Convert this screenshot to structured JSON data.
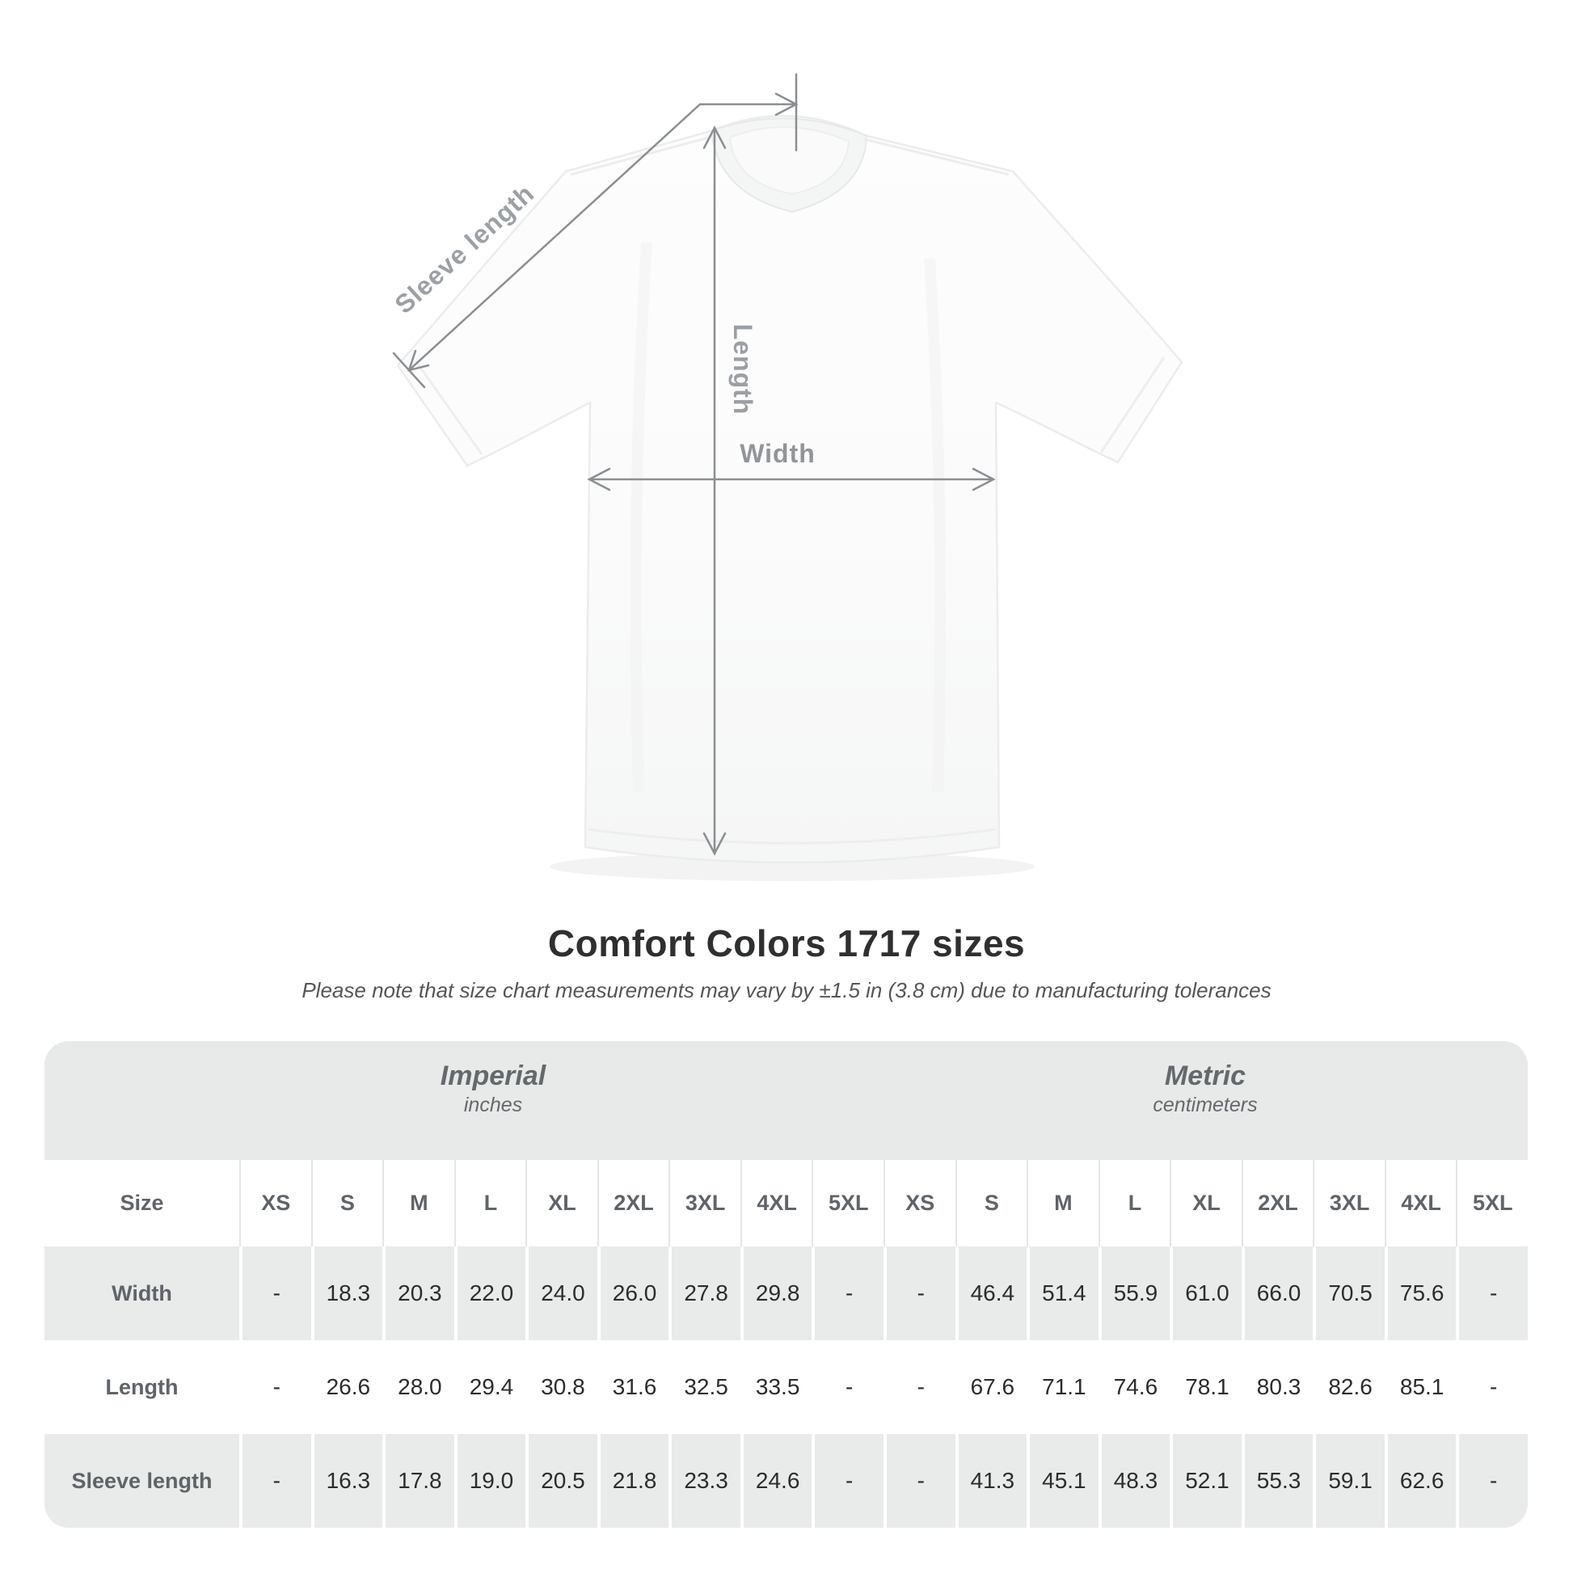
{
  "title": "Comfort Colors 1717 sizes",
  "subtitle": "Please note that size chart measurements may vary by ±1.5 in (3.8 cm) due to manufacturing tolerances",
  "diagram": {
    "labels": {
      "sleeve": "Sleeve length",
      "length": "Length",
      "width": "Width"
    },
    "line_color": "#8a8f92",
    "label_color": "#9aa0a4",
    "shirt_color": "#fbfbfb"
  },
  "table": {
    "size_label": "Size",
    "unit_groups": [
      {
        "name": "Imperial",
        "unit": "inches"
      },
      {
        "name": "Metric",
        "unit": "centimeters"
      }
    ],
    "sizes": [
      "XS",
      "S",
      "M",
      "L",
      "XL",
      "2XL",
      "3XL",
      "4XL",
      "5XL"
    ],
    "rows": [
      {
        "label": "Width",
        "imperial": [
          "-",
          "18.3",
          "20.3",
          "22.0",
          "24.0",
          "26.0",
          "27.8",
          "29.8",
          "-"
        ],
        "metric": [
          "-",
          "46.4",
          "51.4",
          "55.9",
          "61.0",
          "66.0",
          "70.5",
          "75.6",
          "-"
        ]
      },
      {
        "label": "Length",
        "imperial": [
          "-",
          "26.6",
          "28.0",
          "29.4",
          "30.8",
          "31.6",
          "32.5",
          "33.5",
          "-"
        ],
        "metric": [
          "-",
          "67.6",
          "71.1",
          "74.6",
          "78.1",
          "80.3",
          "82.6",
          "85.1",
          "-"
        ]
      },
      {
        "label": "Sleeve length",
        "imperial": [
          "-",
          "16.3",
          "17.8",
          "19.0",
          "20.5",
          "21.8",
          "23.3",
          "24.6",
          "-"
        ],
        "metric": [
          "-",
          "41.3",
          "45.1",
          "48.3",
          "52.1",
          "55.3",
          "59.1",
          "62.6",
          "-"
        ]
      }
    ]
  },
  "chart_data": {
    "type": "table",
    "title": "Comfort Colors 1717 sizes",
    "columns": [
      "Size",
      "XS",
      "S",
      "M",
      "L",
      "XL",
      "2XL",
      "3XL",
      "4XL",
      "5XL"
    ],
    "units": [
      "inches (Imperial)",
      "centimeters (Metric)"
    ],
    "rows_imperial": [
      [
        "Width",
        "-",
        18.3,
        20.3,
        22.0,
        24.0,
        26.0,
        27.8,
        29.8,
        "-"
      ],
      [
        "Length",
        "-",
        26.6,
        28.0,
        29.4,
        30.8,
        31.6,
        32.5,
        33.5,
        "-"
      ],
      [
        "Sleeve length",
        "-",
        16.3,
        17.8,
        19.0,
        20.5,
        21.8,
        23.3,
        24.6,
        "-"
      ]
    ],
    "rows_metric": [
      [
        "Width",
        "-",
        46.4,
        51.4,
        55.9,
        61.0,
        66.0,
        70.5,
        75.6,
        "-"
      ],
      [
        "Length",
        "-",
        67.6,
        71.1,
        74.6,
        78.1,
        80.3,
        82.6,
        85.1,
        "-"
      ],
      [
        "Sleeve length",
        "-",
        41.3,
        45.1,
        48.3,
        52.1,
        55.3,
        59.1,
        62.6,
        "-"
      ]
    ]
  }
}
